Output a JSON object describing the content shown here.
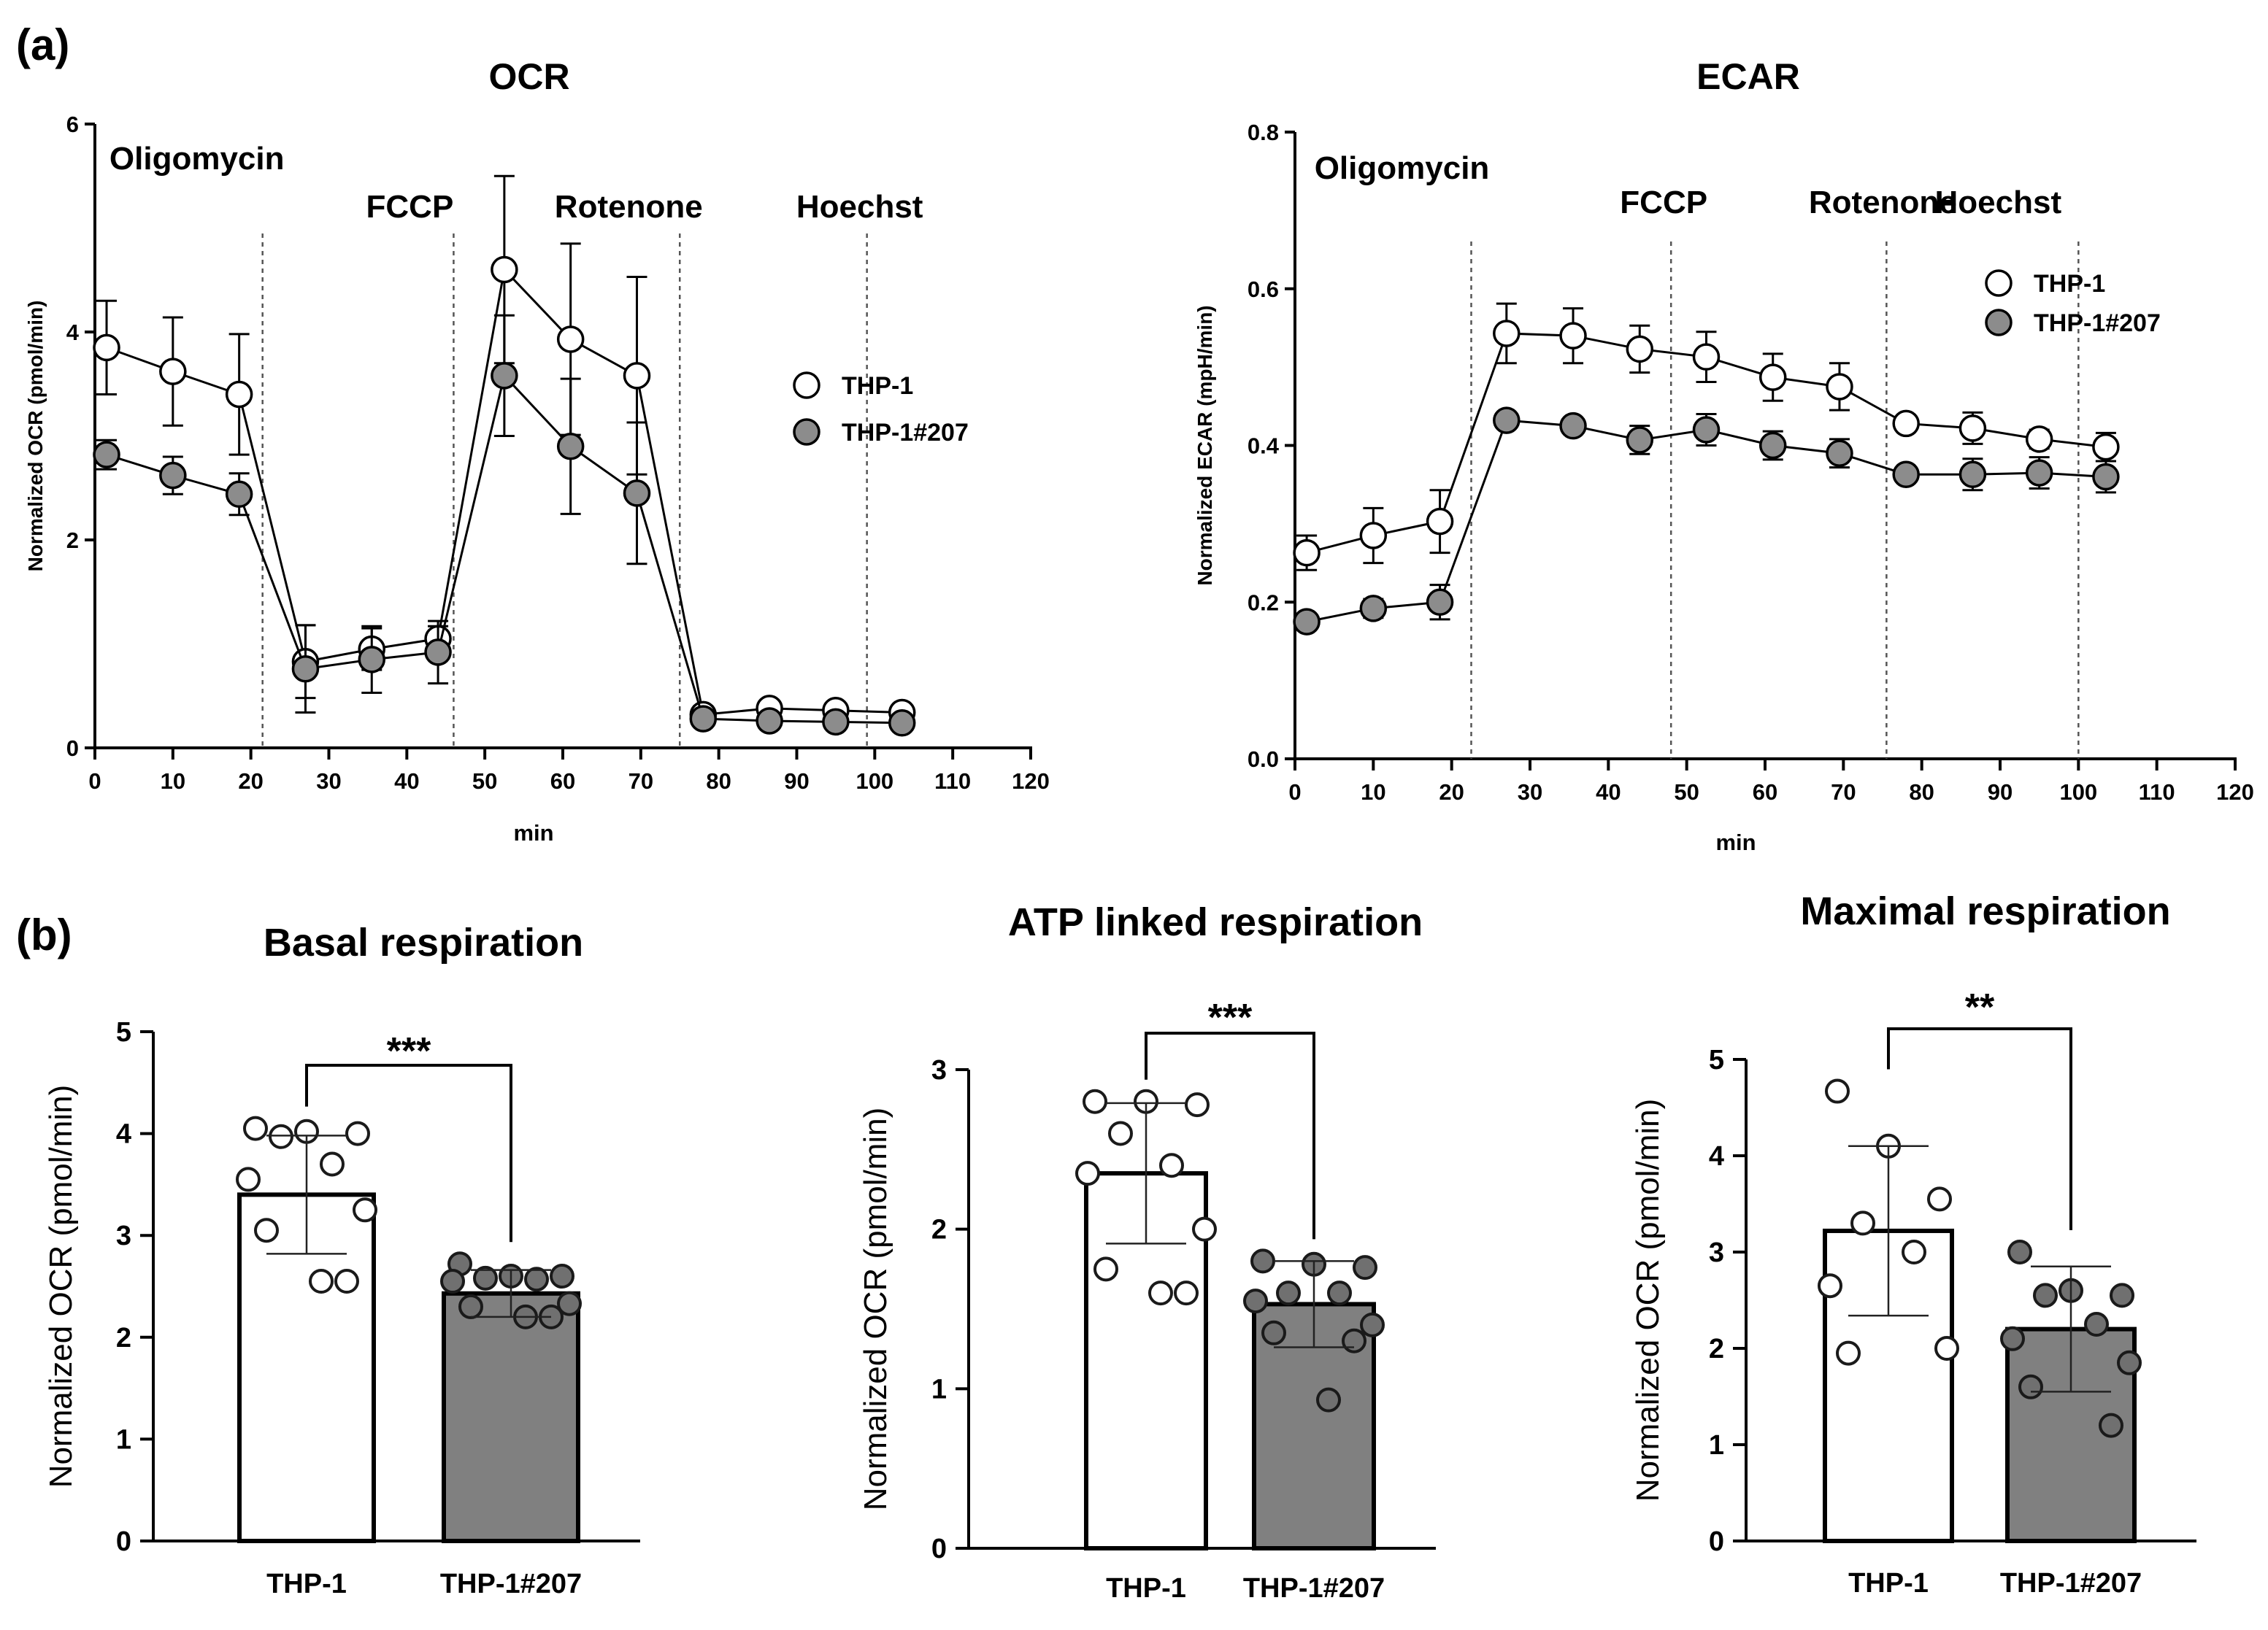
{
  "panel_labels": {
    "a": "(a)",
    "b": "(b)"
  },
  "chart_data": [
    {
      "id": "ocr",
      "type": "line",
      "title": "OCR",
      "xlabel": "min",
      "ylabel": "Normalized OCR (pmol/min)",
      "xlim": [
        0,
        120
      ],
      "ylim": [
        0,
        6
      ],
      "xticks": [
        0,
        10,
        20,
        30,
        40,
        50,
        60,
        70,
        80,
        90,
        100,
        110,
        120
      ],
      "yticks": [
        0,
        2,
        4,
        6
      ],
      "injections": [
        {
          "label": "Oligomycin",
          "x": 21.5
        },
        {
          "label": "FCCP",
          "x": 46
        },
        {
          "label": "Rotenone",
          "x": 75
        },
        {
          "label": "Hoechst",
          "x": 99
        }
      ],
      "series": [
        {
          "name": "THP-1",
          "x": [
            1.5,
            10,
            18.5,
            27,
            35.5,
            44,
            52.5,
            61,
            69.5,
            78,
            86.5,
            95,
            103.5
          ],
          "y": [
            3.85,
            3.62,
            3.4,
            0.83,
            0.95,
            1.05,
            4.6,
            3.93,
            3.58,
            0.32,
            0.38,
            0.36,
            0.34
          ],
          "err": [
            0.45,
            0.52,
            0.58,
            0.35,
            0.2,
            0.12,
            0.9,
            0.92,
            0.95,
            0.08,
            0.06,
            0.05,
            0.05
          ],
          "marker": "open",
          "color": "#ffffff"
        },
        {
          "name": "THP-1#207",
          "x": [
            1.5,
            10,
            18.5,
            27,
            35.5,
            44,
            52.5,
            61,
            69.5,
            78,
            86.5,
            95,
            103.5
          ],
          "y": [
            2.82,
            2.62,
            2.44,
            0.76,
            0.85,
            0.92,
            3.58,
            2.9,
            2.45,
            0.28,
            0.26,
            0.25,
            0.24
          ],
          "err": [
            0.14,
            0.18,
            0.2,
            0.42,
            0.32,
            0.3,
            0.58,
            0.65,
            0.68,
            0.06,
            0.05,
            0.05,
            0.05
          ],
          "marker": "filled",
          "color": "#8c8c8c"
        }
      ],
      "legend": [
        "THP-1",
        "THP-1#207"
      ]
    },
    {
      "id": "ecar",
      "type": "line",
      "title": "ECAR",
      "xlabel": "min",
      "ylabel": "Normalized ECAR (mpH/min)",
      "xlim": [
        0,
        120
      ],
      "ylim": [
        0,
        0.8
      ],
      "xticks": [
        0,
        10,
        20,
        30,
        40,
        50,
        60,
        70,
        80,
        90,
        100,
        110,
        120
      ],
      "yticks": [
        0.0,
        0.2,
        0.4,
        0.6,
        0.8
      ],
      "ytick_labels": [
        "0.0",
        "0.2",
        "0.4",
        "0.6",
        "0.8"
      ],
      "injections": [
        {
          "label": "Oligomycin",
          "x": 22.5
        },
        {
          "label": "FCCP",
          "x": 48
        },
        {
          "label": "Rotenone",
          "x": 75.5
        },
        {
          "label": "Hoechst",
          "x": 100
        }
      ],
      "series": [
        {
          "name": "THP-1",
          "x": [
            1.5,
            10,
            18.5,
            27,
            35.5,
            44,
            52.5,
            61,
            69.5,
            78,
            86.5,
            95,
            103.5
          ],
          "y": [
            0.263,
            0.285,
            0.303,
            0.543,
            0.54,
            0.523,
            0.513,
            0.487,
            0.475,
            0.428,
            0.422,
            0.408,
            0.398
          ],
          "err": [
            0.022,
            0.035,
            0.04,
            0.038,
            0.035,
            0.03,
            0.032,
            0.03,
            0.03,
            0.01,
            0.02,
            0.012,
            0.018
          ],
          "marker": "open",
          "color": "#ffffff"
        },
        {
          "name": "THP-1#207",
          "x": [
            1.5,
            10,
            18.5,
            27,
            35.5,
            44,
            52.5,
            61,
            69.5,
            78,
            86.5,
            95,
            103.5
          ],
          "y": [
            0.175,
            0.192,
            0.2,
            0.432,
            0.425,
            0.407,
            0.42,
            0.4,
            0.39,
            0.363,
            0.363,
            0.365,
            0.36
          ],
          "err": [
            0.008,
            0.012,
            0.022,
            0.01,
            0.008,
            0.018,
            0.02,
            0.018,
            0.018,
            0.008,
            0.02,
            0.02,
            0.02
          ],
          "marker": "filled",
          "color": "#8c8c8c"
        }
      ],
      "legend": [
        "THP-1",
        "THP-1#207"
      ]
    },
    {
      "id": "basal",
      "type": "bar",
      "title": "Basal respiration",
      "ylabel": "Normalized OCR (pmol/min)",
      "categories": [
        "THP-1",
        "THP-1#207"
      ],
      "values": [
        3.4,
        2.43
      ],
      "sd": [
        0.58,
        0.23
      ],
      "colors": [
        "#ffffff",
        "#808080"
      ],
      "points": [
        [
          4.05,
          4.02,
          4.0,
          3.97,
          3.7,
          3.55,
          3.25,
          3.05,
          2.55,
          2.55
        ],
        [
          2.72,
          2.6,
          2.6,
          2.58,
          2.57,
          2.55,
          2.33,
          2.3,
          2.2,
          2.2
        ]
      ],
      "ylim": [
        0,
        5
      ],
      "yticks": [
        0,
        1,
        2,
        3,
        4,
        5
      ],
      "significance": "***"
    },
    {
      "id": "atp",
      "type": "bar",
      "title": "ATP linked respiration",
      "ylabel": "Normalized OCR (pmol/min)",
      "categories": [
        "THP-1",
        "THP-1#207"
      ],
      "values": [
        2.35,
        1.53
      ],
      "sd": [
        0.44,
        0.27
      ],
      "colors": [
        "#ffffff",
        "#808080"
      ],
      "points": [
        [
          2.8,
          2.8,
          2.78,
          2.6,
          2.4,
          2.35,
          2.0,
          1.75,
          1.6,
          1.6
        ],
        [
          1.8,
          1.78,
          1.76,
          1.6,
          1.6,
          1.55,
          1.4,
          1.35,
          1.3,
          0.93
        ]
      ],
      "ylim": [
        0,
        3
      ],
      "yticks": [
        0,
        1,
        2,
        3
      ],
      "significance": "***"
    },
    {
      "id": "maximal",
      "type": "bar",
      "title": "Maximal respiration",
      "ylabel": "Normalized OCR (pmol/min)",
      "categories": [
        "THP-1",
        "THP-1#207"
      ],
      "values": [
        3.22,
        2.2
      ],
      "sd": [
        0.88,
        0.65
      ],
      "colors": [
        "#ffffff",
        "#808080"
      ],
      "points": [
        [
          4.67,
          4.1,
          3.55,
          3.3,
          3.0,
          2.65,
          2.0,
          1.95
        ],
        [
          3.0,
          2.6,
          2.55,
          2.55,
          2.25,
          2.1,
          1.85,
          1.6,
          1.2
        ]
      ],
      "ylim": [
        0,
        5
      ],
      "yticks": [
        0,
        1,
        2,
        3,
        4,
        5
      ],
      "significance": "**"
    }
  ]
}
